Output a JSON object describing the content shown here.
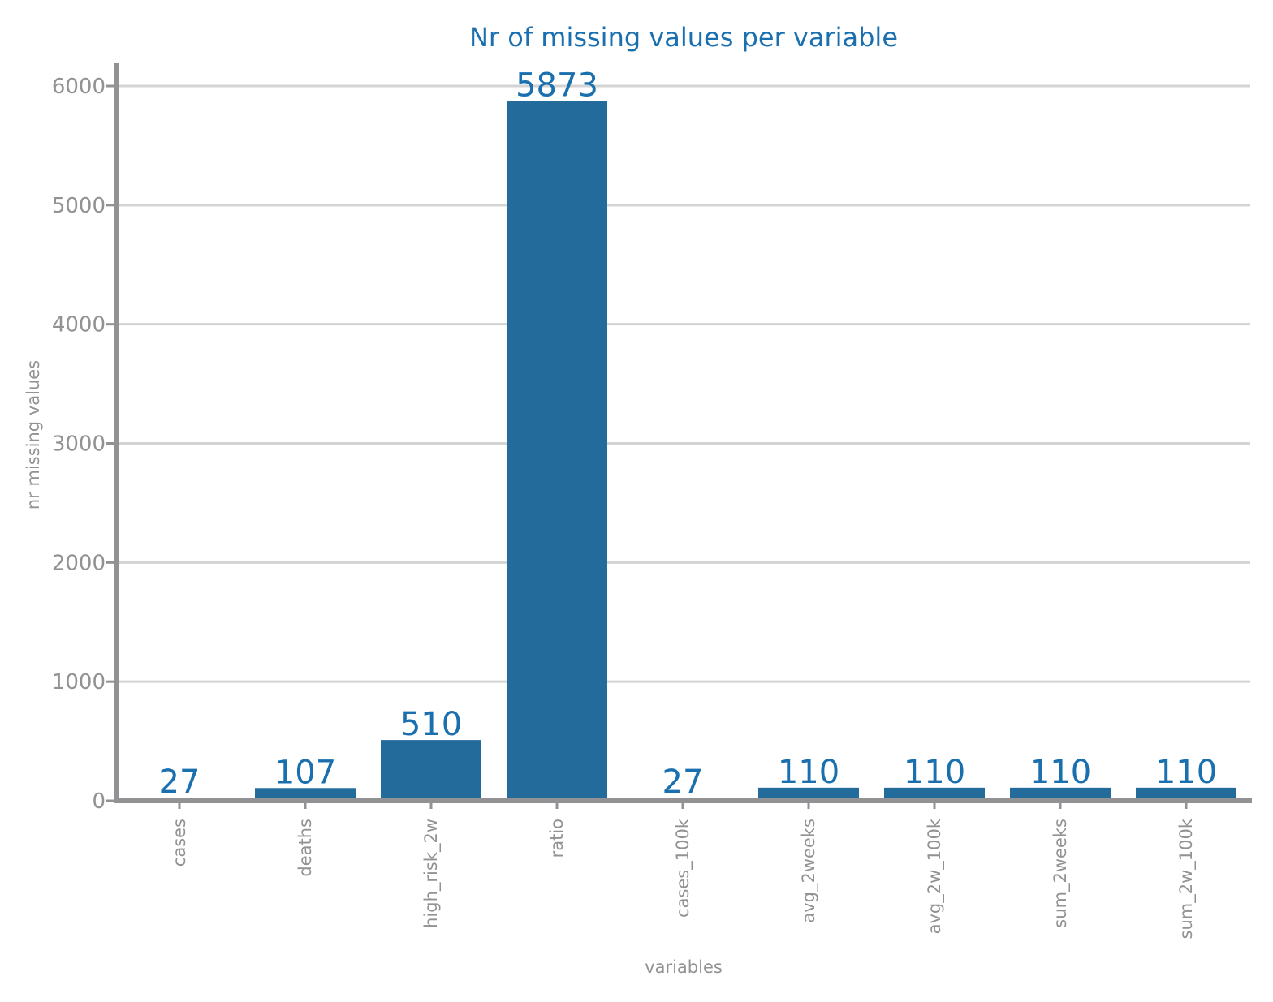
{
  "chart_data": {
    "type": "bar",
    "title": "Nr of missing values per variable",
    "xlabel": "variables",
    "ylabel": "nr missing values",
    "categories": [
      "cases",
      "deaths",
      "high_risk_2w",
      "ratio",
      "cases_100k",
      "avg_2weeks",
      "avg_2w_100k",
      "sum_2weeks",
      "sum_2w_100k"
    ],
    "values": [
      27,
      107,
      510,
      5873,
      27,
      110,
      110,
      110,
      110
    ],
    "data_labels": [
      "27",
      "107",
      "510",
      "5873",
      "27",
      "110",
      "110",
      "110",
      "110"
    ],
    "yticks": [
      0,
      1000,
      2000,
      3000,
      4000,
      5000,
      6000
    ],
    "ytick_labels": [
      "0",
      "1000",
      "2000",
      "3000",
      "4000",
      "5000",
      "6000"
    ],
    "ylim": [
      0,
      6200
    ],
    "grid": "horizontal",
    "colors": {
      "bar": "#236b9a",
      "title": "#1a6faf",
      "data_label": "#1a6faf",
      "axis": "#929295",
      "grid": "#d3d3d3",
      "text": "#929292"
    }
  }
}
